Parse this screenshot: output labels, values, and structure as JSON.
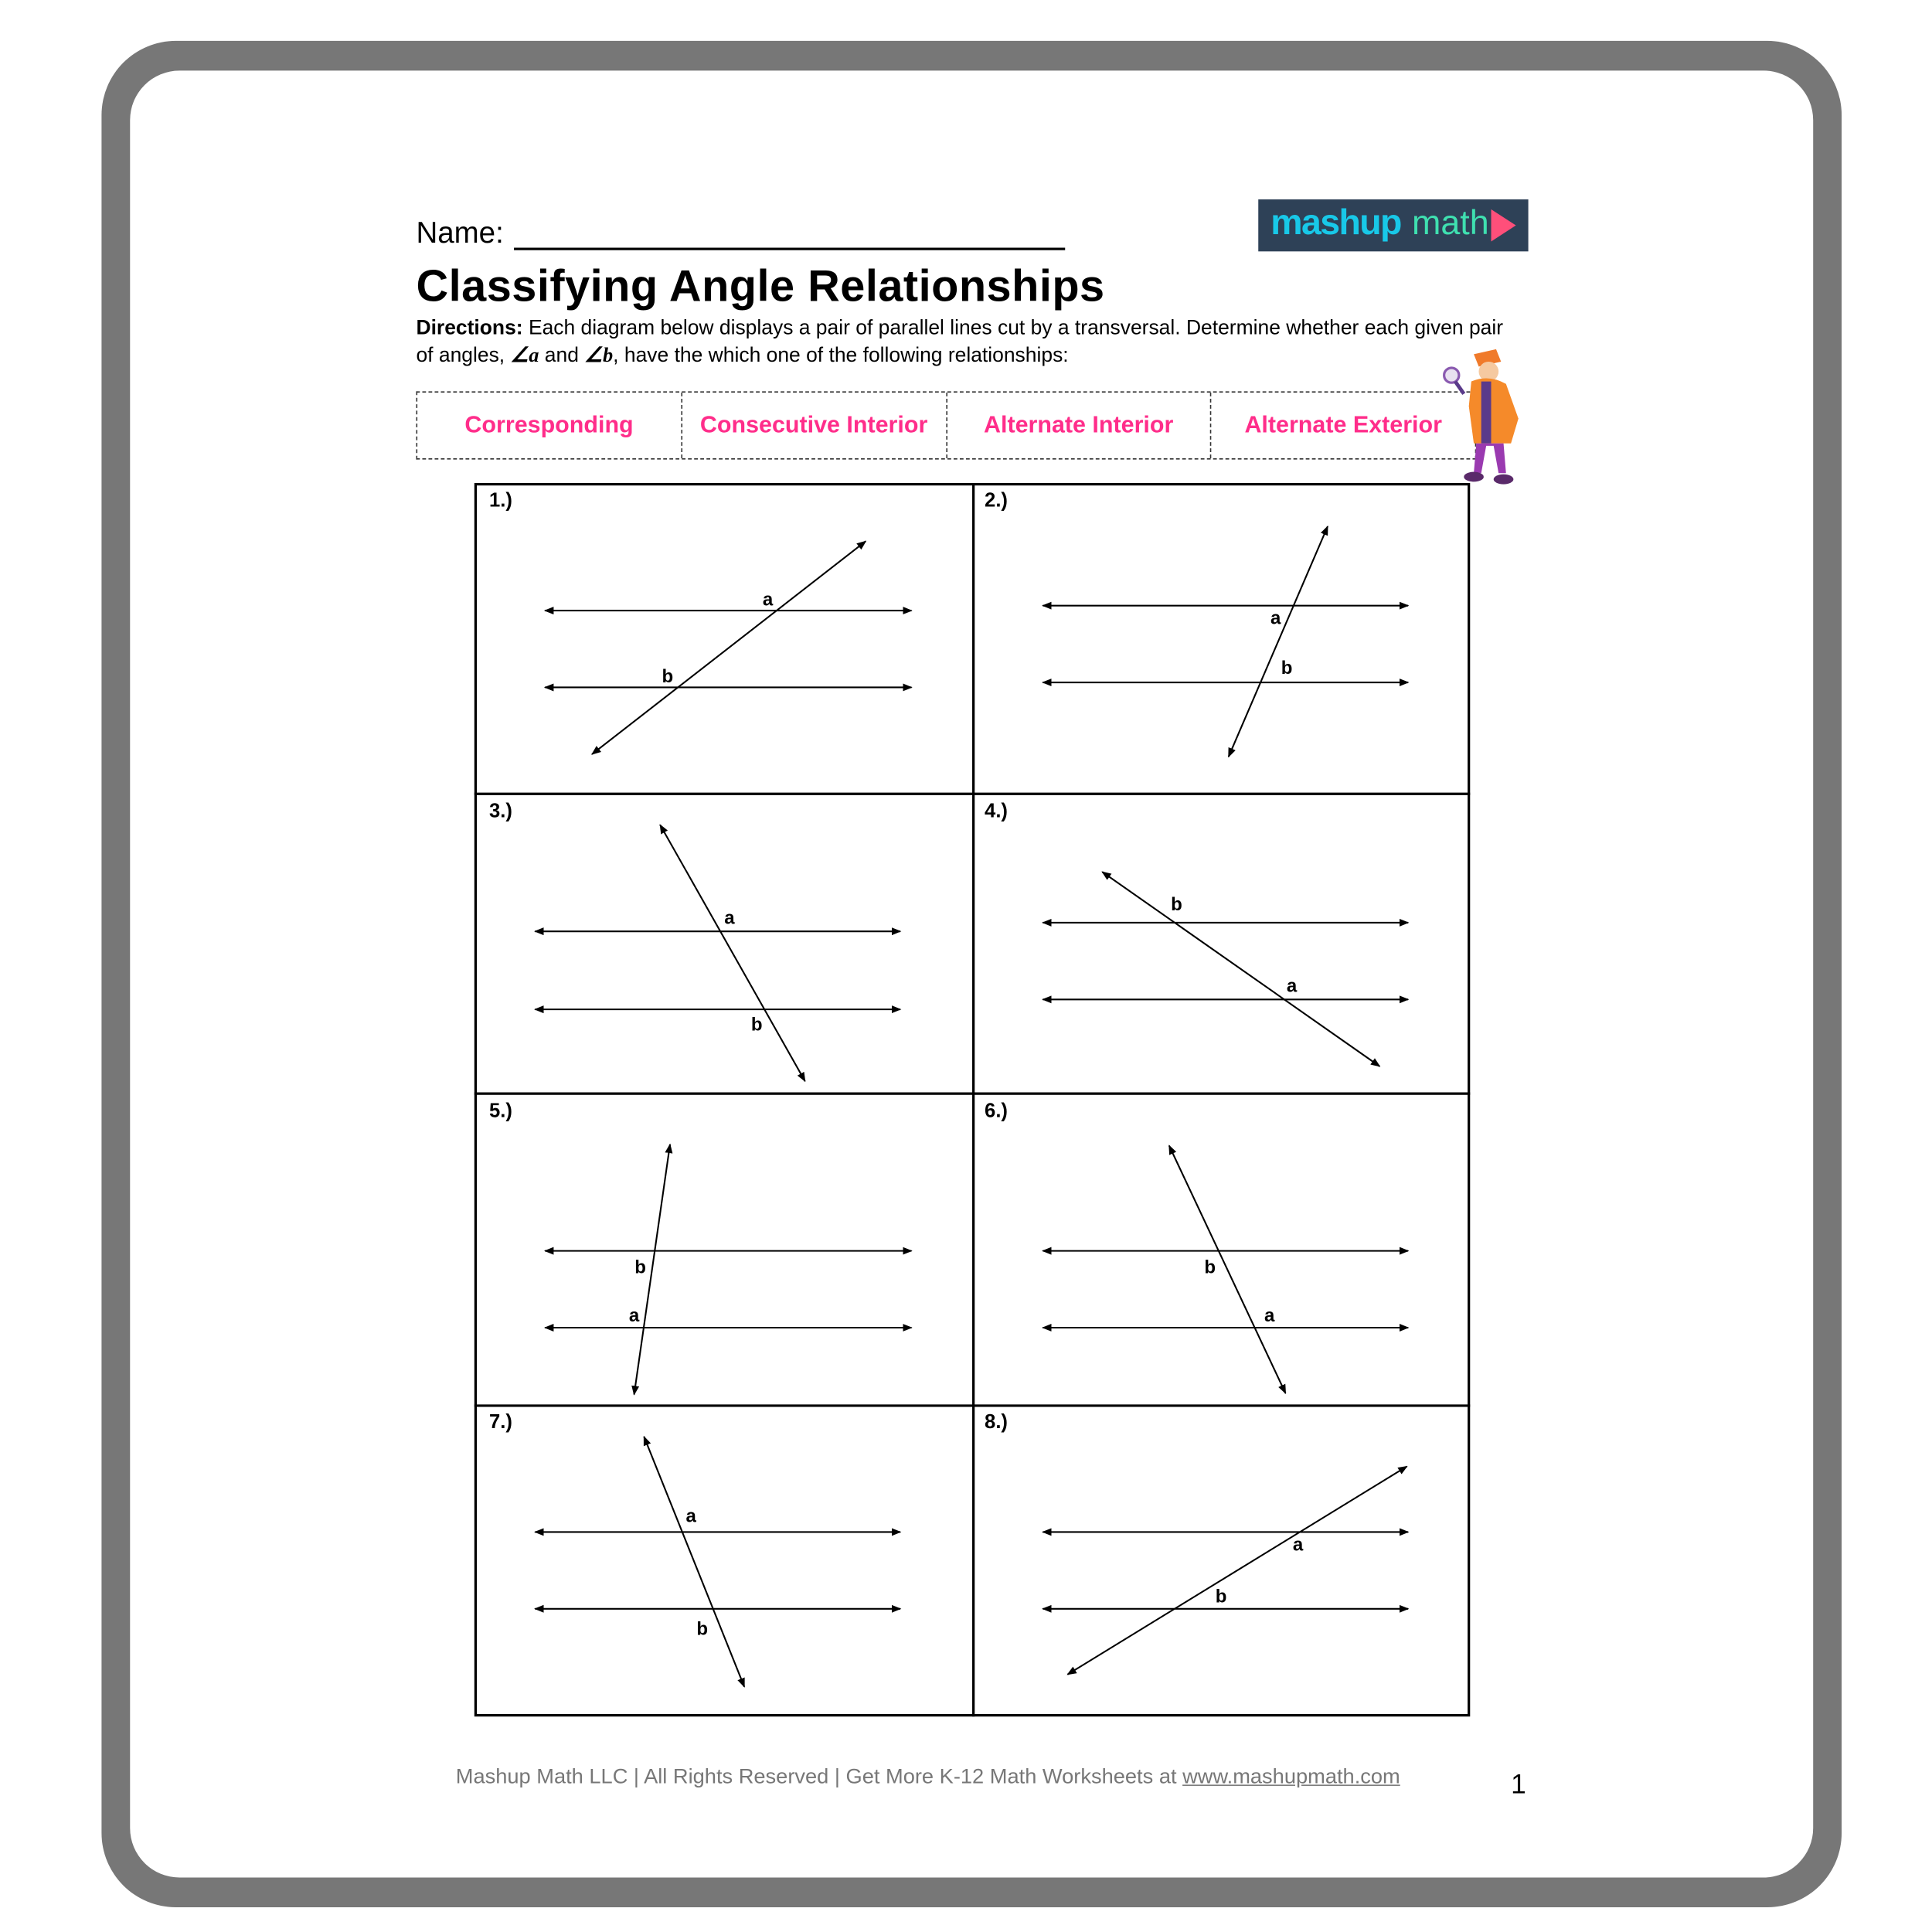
{
  "header": {
    "name_label": "Name:",
    "logo_text_bold": "mashup",
    "logo_text_light": "math",
    "title": "Classifying Angle Relationships",
    "directions_label": "Directions:",
    "directions_text_1": " Each diagram below displays a pair of parallel lines cut by a transversal. Determine whether each given pair of angles, ",
    "angle_a": "∠a",
    "and": " and ",
    "angle_b": "∠b",
    "directions_text_2": ", have the which one of the following relationships:"
  },
  "options": [
    "Corresponding",
    "Consecutive Interior",
    "Alternate Interior",
    "Alternate Exterior"
  ],
  "colors": {
    "option_text": "#ff2d8a",
    "angle_label": "#3a3fd8",
    "logo_bg": "#2e4157",
    "frame": "#777777"
  },
  "problems": [
    {
      "number": "1.)",
      "label_a": "a",
      "label_b": "b"
    },
    {
      "number": "2.)",
      "label_a": "a",
      "label_b": "b"
    },
    {
      "number": "3.)",
      "label_a": "a",
      "label_b": "b"
    },
    {
      "number": "4.)",
      "label_a": "a",
      "label_b": "b"
    },
    {
      "number": "5.)",
      "label_a": "a",
      "label_b": "b"
    },
    {
      "number": "6.)",
      "label_a": "a",
      "label_b": "b"
    },
    {
      "number": "7.)",
      "label_a": "a",
      "label_b": "b"
    },
    {
      "number": "8.)",
      "label_a": "a",
      "label_b": "b"
    }
  ],
  "footer": {
    "text": "Mashup Math LLC | All Rights Reserved | Get More K-12 Math Worksheets at ",
    "link": "www.mashupmath.com",
    "page_number": "1"
  }
}
